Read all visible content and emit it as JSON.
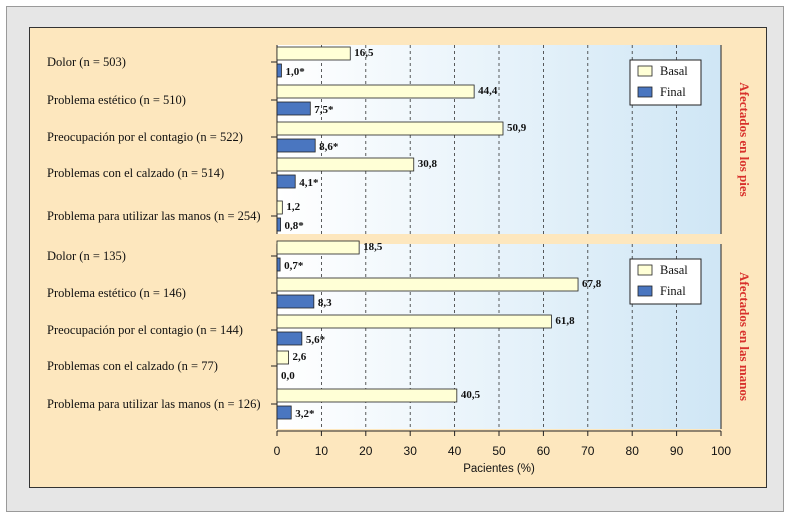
{
  "chart_data": [
    {
      "type": "bar",
      "orientation": "horizontal",
      "side_label": "Afectados en los pies",
      "categories": [
        "Dolor (n = 503)",
        "Problema estético (n = 510)",
        "Preocupación por el contagio (n = 522)",
        "Problemas con el calzado (n = 514)",
        "Problema para utilizar las manos (n = 254)"
      ],
      "series": [
        {
          "name": "Basal",
          "color": "#ffffd6",
          "values": [
            16.5,
            44.4,
            50.9,
            30.8,
            1.2
          ],
          "labels": [
            "16,5",
            "44,4",
            "50,9",
            "30,8",
            "1,2"
          ]
        },
        {
          "name": "Final",
          "color": "#4a76c0",
          "values": [
            1.0,
            7.5,
            8.6,
            4.1,
            0.8
          ],
          "labels": [
            "1,0*",
            "7,5*",
            "8,6*",
            "4,1*",
            "0,8*"
          ]
        }
      ],
      "xlim": [
        0,
        100
      ],
      "legend": "top-right",
      "grid": true
    },
    {
      "type": "bar",
      "orientation": "horizontal",
      "side_label": "Afectados en las manos",
      "categories": [
        "Dolor (n = 135)",
        "Problema estético (n = 146)",
        "Preocupación por el contagio (n = 144)",
        "Problemas con el calzado (n = 77)",
        "Problema para utilizar las manos (n = 126)"
      ],
      "series": [
        {
          "name": "Basal",
          "color": "#ffffd6",
          "values": [
            18.5,
            67.8,
            61.8,
            2.6,
            40.5
          ],
          "labels": [
            "18,5",
            "67,8",
            "61,8",
            "2,6",
            "40,5"
          ]
        },
        {
          "name": "Final",
          "color": "#4a76c0",
          "values": [
            0.7,
            8.3,
            5.6,
            0.0,
            3.2
          ],
          "labels": [
            "0,7*",
            "8,3",
            "5,6*",
            "0,0",
            "3,2*"
          ]
        }
      ],
      "xlim": [
        0,
        100
      ],
      "legend": "top-right",
      "grid": true
    }
  ],
  "xaxis": {
    "label": "Pacientes (%)",
    "ticks": [
      "0",
      "10",
      "20",
      "30",
      "40",
      "50",
      "60",
      "70",
      "80",
      "90",
      "100"
    ]
  },
  "colors": {
    "panel_bg": "#fde7be",
    "side_label": "#d8312c",
    "basal": "#ffffd6",
    "final": "#4a76c0"
  }
}
